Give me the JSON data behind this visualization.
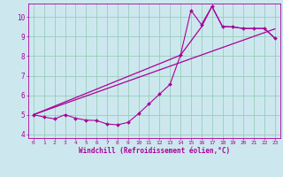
{
  "xlabel": "Windchill (Refroidissement éolien,°C)",
  "bg_color": "#cce8ee",
  "line_color": "#aa0099",
  "grid_color": "#99ccbb",
  "xlim": [
    -0.5,
    23.5
  ],
  "ylim": [
    3.8,
    10.7
  ],
  "xticks": [
    0,
    1,
    2,
    3,
    4,
    5,
    6,
    7,
    8,
    9,
    10,
    11,
    12,
    13,
    14,
    15,
    16,
    17,
    18,
    19,
    20,
    21,
    22,
    23
  ],
  "yticks": [
    4,
    5,
    6,
    7,
    8,
    9,
    10
  ],
  "series": {
    "line1_x": [
      0,
      1,
      2,
      3,
      4,
      5,
      6,
      7,
      8,
      9,
      10,
      11,
      12,
      13,
      14,
      15,
      16,
      17,
      18,
      19,
      20,
      21,
      22,
      23
    ],
    "line1_y": [
      5.0,
      4.88,
      4.78,
      5.0,
      4.82,
      4.72,
      4.7,
      4.52,
      4.48,
      4.6,
      5.05,
      5.55,
      6.05,
      6.55,
      8.05,
      10.35,
      9.62,
      10.55,
      9.52,
      9.5,
      9.42,
      9.42,
      9.42,
      8.92
    ],
    "line2_x": [
      0,
      23
    ],
    "line2_y": [
      5.0,
      9.4
    ],
    "line3_x": [
      0,
      14,
      16,
      17,
      18,
      19,
      20,
      21,
      22,
      23
    ],
    "line3_y": [
      5.0,
      8.05,
      9.5,
      10.55,
      9.52,
      9.5,
      9.42,
      9.42,
      9.42,
      8.92
    ]
  }
}
